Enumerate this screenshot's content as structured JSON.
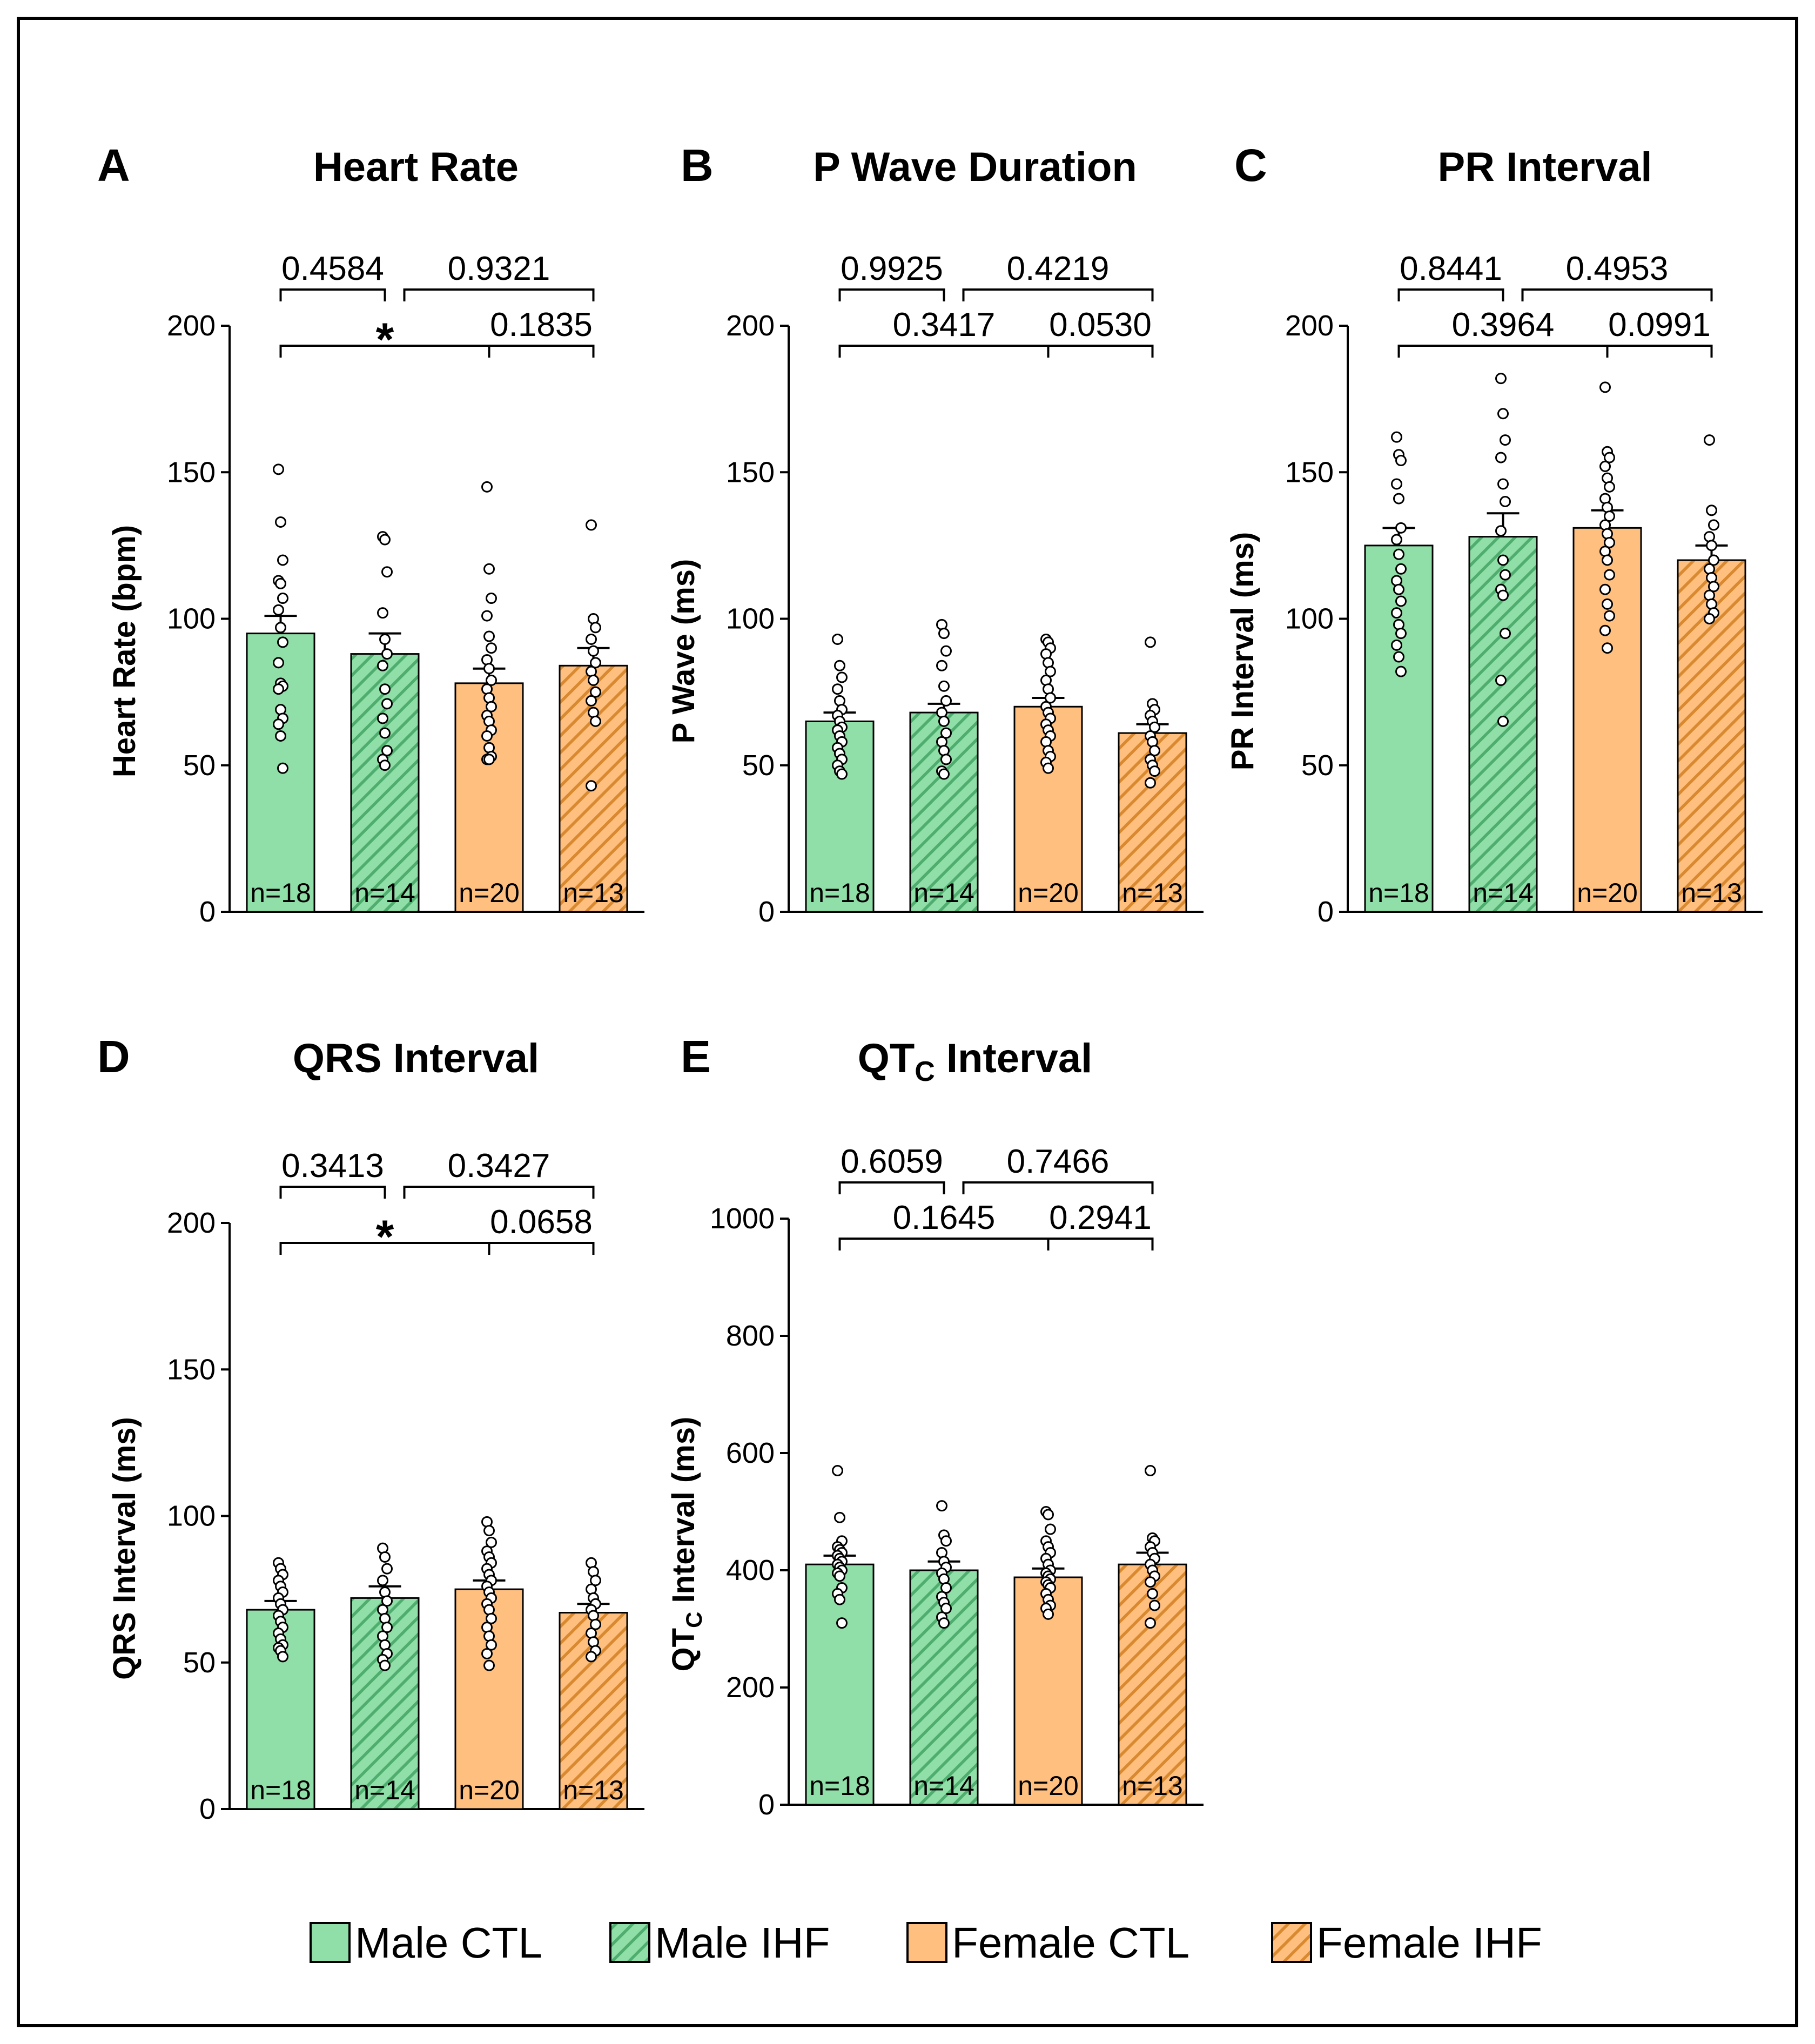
{
  "colors": {
    "male": "#91dfa8",
    "male_hatch": "#4fae6f",
    "female": "#ffbf7f",
    "female_hatch": "#d9892f",
    "stroke": "#000000"
  },
  "legend": [
    {
      "label": "Male CTL",
      "group": "male",
      "hatched": false
    },
    {
      "label": "Male IHF",
      "group": "male",
      "hatched": true
    },
    {
      "label": "Female CTL",
      "group": "female",
      "hatched": false
    },
    {
      "label": "Female IHF",
      "group": "female",
      "hatched": true
    }
  ],
  "chart_data": [
    {
      "panel": "A",
      "type": "bar",
      "title": "Heart Rate",
      "ylabel": "Heart Rate (bpm)",
      "ylim": [
        0,
        200
      ],
      "yticks": [
        0,
        50,
        100,
        150,
        200
      ],
      "categories": [
        "Male CTL",
        "Male IHF",
        "Female CTL",
        "Female IHF"
      ],
      "values": [
        95,
        88,
        78,
        84
      ],
      "sem": [
        6,
        7,
        5,
        6
      ],
      "n_labels": [
        "n=18",
        "n=14",
        "n=20",
        "n=13"
      ],
      "points": [
        [
          151,
          133,
          120,
          113,
          112,
          107,
          103,
          97,
          92,
          85,
          78,
          77,
          76,
          69,
          66,
          64,
          60,
          49
        ],
        [
          128,
          127,
          116,
          102,
          93,
          88,
          84,
          76,
          71,
          66,
          61,
          55,
          52,
          50
        ],
        [
          145,
          117,
          107,
          101,
          94,
          90,
          86,
          83,
          79,
          76,
          73,
          70,
          67,
          65,
          62,
          60,
          56,
          53,
          52,
          52
        ],
        [
          132,
          100,
          97,
          93,
          89,
          85,
          82,
          79,
          75,
          72,
          68,
          65,
          43
        ]
      ],
      "comparisons": [
        {
          "from": 0,
          "to": 1,
          "label": "0.4584",
          "level": 1
        },
        {
          "from": 1,
          "to": 3,
          "label": "0.9321",
          "level": 1
        },
        {
          "from": 0,
          "to": 2,
          "label": "*",
          "level": 0
        },
        {
          "from": 2,
          "to": 3,
          "label": "0.1835",
          "level": 0
        }
      ]
    },
    {
      "panel": "B",
      "type": "bar",
      "title": "P Wave Duration",
      "ylabel": "P Wave (ms)",
      "ylim": [
        0,
        200
      ],
      "yticks": [
        0,
        50,
        100,
        150,
        200
      ],
      "categories": [
        "Male CTL",
        "Male IHF",
        "Female CTL",
        "Female IHF"
      ],
      "values": [
        65,
        68,
        70,
        61
      ],
      "sem": [
        3,
        3,
        3,
        3
      ],
      "n_labels": [
        "n=18",
        "n=14",
        "n=20",
        "n=13"
      ],
      "points": [
        [
          93,
          84,
          80,
          76,
          72,
          69,
          67,
          65,
          63,
          62,
          60,
          58,
          56,
          54,
          52,
          50,
          48,
          47
        ],
        [
          98,
          95,
          89,
          84,
          77,
          72,
          68,
          65,
          61,
          58,
          55,
          52,
          48,
          47
        ],
        [
          93,
          92,
          90,
          88,
          85,
          82,
          79,
          76,
          73,
          70,
          68,
          66,
          64,
          62,
          60,
          58,
          55,
          53,
          51,
          49
        ],
        [
          92,
          71,
          69,
          67,
          65,
          63,
          60,
          58,
          55,
          52,
          50,
          48,
          44
        ]
      ],
      "comparisons": [
        {
          "from": 0,
          "to": 1,
          "label": "0.9925",
          "level": 1
        },
        {
          "from": 1,
          "to": 3,
          "label": "0.4219",
          "level": 1
        },
        {
          "from": 0,
          "to": 2,
          "label": "0.3417",
          "level": 0
        },
        {
          "from": 2,
          "to": 3,
          "label": "0.0530",
          "level": 0
        }
      ]
    },
    {
      "panel": "C",
      "type": "bar",
      "title": "PR Interval",
      "ylabel": "PR Interval (ms)",
      "ylim": [
        0,
        200
      ],
      "yticks": [
        0,
        50,
        100,
        150,
        200
      ],
      "categories": [
        "Male CTL",
        "Male IHF",
        "Female CTL",
        "Female IHF"
      ],
      "values": [
        125,
        128,
        131,
        120
      ],
      "sem": [
        6,
        8,
        6,
        5
      ],
      "n_labels": [
        "n=18",
        "n=14",
        "n=20",
        "n=13"
      ],
      "points": [
        [
          162,
          156,
          154,
          146,
          141,
          131,
          127,
          122,
          117,
          113,
          110,
          106,
          102,
          98,
          95,
          91,
          87,
          82
        ],
        [
          182,
          170,
          161,
          155,
          146,
          140,
          130,
          120,
          115,
          110,
          108,
          95,
          79,
          65
        ],
        [
          179,
          157,
          155,
          152,
          148,
          145,
          141,
          138,
          135,
          132,
          129,
          126,
          123,
          120,
          115,
          110,
          105,
          101,
          96,
          90
        ],
        [
          161,
          137,
          132,
          128,
          125,
          120,
          117,
          114,
          111,
          108,
          105,
          102,
          100
        ]
      ],
      "comparisons": [
        {
          "from": 0,
          "to": 1,
          "label": "0.8441",
          "level": 1
        },
        {
          "from": 1,
          "to": 3,
          "label": "0.4953",
          "level": 1
        },
        {
          "from": 0,
          "to": 2,
          "label": "0.3964",
          "level": 0
        },
        {
          "from": 2,
          "to": 3,
          "label": "0.0991",
          "level": 0
        }
      ]
    },
    {
      "panel": "D",
      "type": "bar",
      "title": "QRS Interval",
      "ylabel": "QRS Interval (ms)",
      "ylim": [
        0,
        200
      ],
      "yticks": [
        0,
        50,
        100,
        150,
        200
      ],
      "categories": [
        "Male CTL",
        "Male IHF",
        "Female CTL",
        "Female IHF"
      ],
      "values": [
        68,
        72,
        75,
        67
      ],
      "sem": [
        3,
        4,
        3,
        3
      ],
      "n_labels": [
        "n=18",
        "n=14",
        "n=20",
        "n=13"
      ],
      "points": [
        [
          84,
          82,
          80,
          78,
          76,
          74,
          72,
          70,
          68,
          66,
          64,
          62,
          60,
          58,
          56,
          55,
          54,
          52
        ],
        [
          89,
          86,
          82,
          78,
          74,
          71,
          68,
          65,
          62,
          59,
          56,
          53,
          51,
          49
        ],
        [
          98,
          95,
          91,
          88,
          86,
          84,
          82,
          80,
          78,
          76,
          74,
          72,
          70,
          68,
          65,
          62,
          59,
          56,
          53,
          49
        ],
        [
          84,
          81,
          78,
          75,
          72,
          70,
          68,
          66,
          63,
          60,
          57,
          54,
          52
        ]
      ],
      "comparisons": [
        {
          "from": 0,
          "to": 1,
          "label": "0.3413",
          "level": 1
        },
        {
          "from": 1,
          "to": 3,
          "label": "0.3427",
          "level": 1
        },
        {
          "from": 0,
          "to": 2,
          "label": "*",
          "level": 0
        },
        {
          "from": 2,
          "to": 3,
          "label": "0.0658",
          "level": 0
        }
      ]
    },
    {
      "panel": "E",
      "type": "bar",
      "title": "Interval",
      "title_main": "QT",
      "title_sub": "C",
      "ylabel": "Interval (ms)",
      "ylabel_main": "QT",
      "ylabel_sub": "C",
      "ylim": [
        0,
        1000
      ],
      "yticks": [
        0,
        200,
        400,
        600,
        800,
        1000
      ],
      "categories": [
        "Male CTL",
        "Male IHF",
        "Female CTL",
        "Female IHF"
      ],
      "values": [
        410,
        400,
        388,
        410
      ],
      "sem": [
        15,
        15,
        15,
        20
      ],
      "n_labels": [
        "n=18",
        "n=14",
        "n=20",
        "n=13"
      ],
      "points": [
        [
          570,
          490,
          450,
          440,
          435,
          430,
          425,
          420,
          415,
          410,
          405,
          400,
          395,
          390,
          370,
          360,
          350,
          310
        ],
        [
          510,
          460,
          450,
          430,
          415,
          405,
          395,
          385,
          370,
          355,
          345,
          335,
          320,
          310
        ],
        [
          500,
          495,
          470,
          450,
          440,
          430,
          420,
          410,
          400,
          395,
          390,
          385,
          380,
          375,
          370,
          360,
          350,
          340,
          335,
          325
        ],
        [
          570,
          455,
          450,
          440,
          430,
          420,
          410,
          400,
          390,
          380,
          360,
          340,
          310
        ]
      ],
      "comparisons": [
        {
          "from": 0,
          "to": 1,
          "label": "0.6059",
          "level": 1
        },
        {
          "from": 1,
          "to": 3,
          "label": "0.7466",
          "level": 1
        },
        {
          "from": 0,
          "to": 2,
          "label": "0.1645",
          "level": 0
        },
        {
          "from": 2,
          "to": 3,
          "label": "0.2941",
          "level": 0
        }
      ]
    }
  ]
}
